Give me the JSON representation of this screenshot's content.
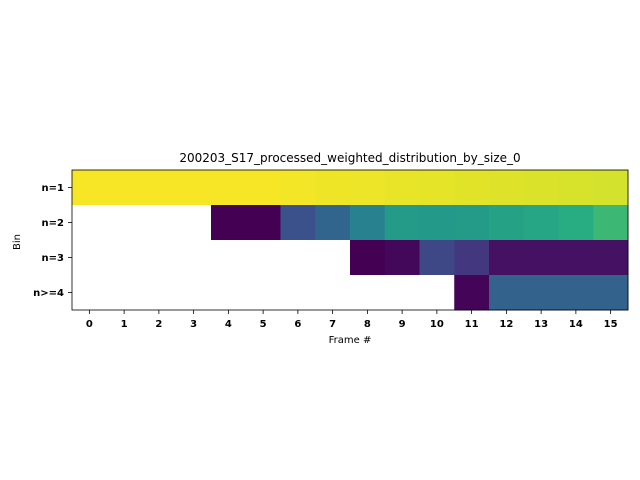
{
  "chart_data": {
    "type": "heatmap",
    "title": "200203_S17_processed_weighted_distribution_by_size_0",
    "xlabel": "Frame #",
    "ylabel": "Bin",
    "x": [
      "0",
      "1",
      "2",
      "3",
      "4",
      "5",
      "6",
      "7",
      "8",
      "9",
      "10",
      "11",
      "12",
      "13",
      "14",
      "15"
    ],
    "y": [
      "n=1",
      "n=2",
      "n=3",
      "n>=4"
    ],
    "colormap": "viridis",
    "color_range": [
      0,
      1
    ],
    "missing_color": "#ffffff",
    "values": [
      [
        0.99,
        0.99,
        0.99,
        0.99,
        0.99,
        0.99,
        0.985,
        0.98,
        0.975,
        0.97,
        0.965,
        0.96,
        0.955,
        0.95,
        0.945,
        0.94
      ],
      [
        null,
        null,
        null,
        null,
        0.0,
        0.0,
        0.25,
        0.33,
        0.44,
        0.55,
        0.54,
        0.55,
        0.58,
        0.6,
        0.63,
        0.68
      ],
      [
        null,
        null,
        null,
        null,
        null,
        null,
        null,
        null,
        0.0,
        0.02,
        0.22,
        0.17,
        0.05,
        0.05,
        0.05,
        0.05
      ],
      [
        null,
        null,
        null,
        null,
        null,
        null,
        null,
        null,
        null,
        null,
        null,
        0.01,
        0.32,
        0.32,
        0.32,
        0.32
      ]
    ]
  }
}
